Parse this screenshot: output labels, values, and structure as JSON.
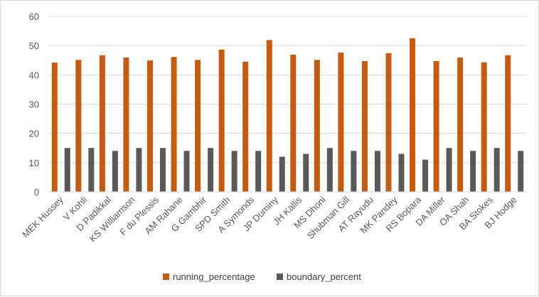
{
  "chart_data": {
    "type": "bar",
    "categories": [
      "MEK Hussey",
      "V Kohli",
      "D Padikkal",
      "KS Williamson",
      "F du Plessis",
      "AM Rahane",
      "G Gambhir",
      "SPD Smith",
      "A Symonds",
      "JP Duminy",
      "JH Kallis",
      "MS Dhoni",
      "Shubman Gill",
      "AT Rayudu",
      "MK Pandey",
      "RS Bopara",
      "DA Miller",
      "OA Shah",
      "BA Stokes",
      "BJ Hodge"
    ],
    "series": [
      {
        "name": "running_percentage",
        "color": "#c55a11",
        "values": [
          44.2,
          45.1,
          46.7,
          45.9,
          44.9,
          46.1,
          45.1,
          48.6,
          44.5,
          51.9,
          46.9,
          45.1,
          47.6,
          44.7,
          47.4,
          52.5,
          44.7,
          45.9,
          44.3,
          46.7
        ]
      },
      {
        "name": "boundary_percent",
        "color": "#595959",
        "values": [
          15,
          15,
          14,
          15,
          15,
          14,
          15,
          14,
          14,
          12,
          13,
          15,
          14,
          14,
          13,
          11,
          15,
          14,
          15,
          14
        ]
      }
    ],
    "ylim": [
      0,
      60
    ],
    "yticks": [
      0,
      10,
      20,
      30,
      40,
      50,
      60
    ],
    "grid": true,
    "legend": "bottom",
    "title": "",
    "xlabel": "",
    "ylabel": ""
  }
}
